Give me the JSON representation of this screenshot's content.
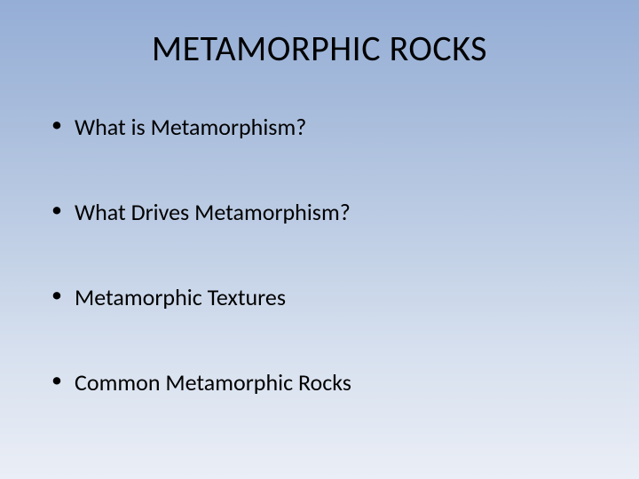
{
  "slide": {
    "title": "METAMORPHIC ROCKS",
    "bullets": [
      "What is Metamorphism?",
      "What Drives Metamorphism?",
      "Metamorphic Textures",
      "Common Metamorphic Rocks"
    ],
    "background_gradient": {
      "top": "#95aed6",
      "bottom": "#eaeef6"
    },
    "title_fontsize": 40,
    "bullet_fontsize": 26,
    "text_color": "#000000",
    "font_family": "Calibri"
  }
}
